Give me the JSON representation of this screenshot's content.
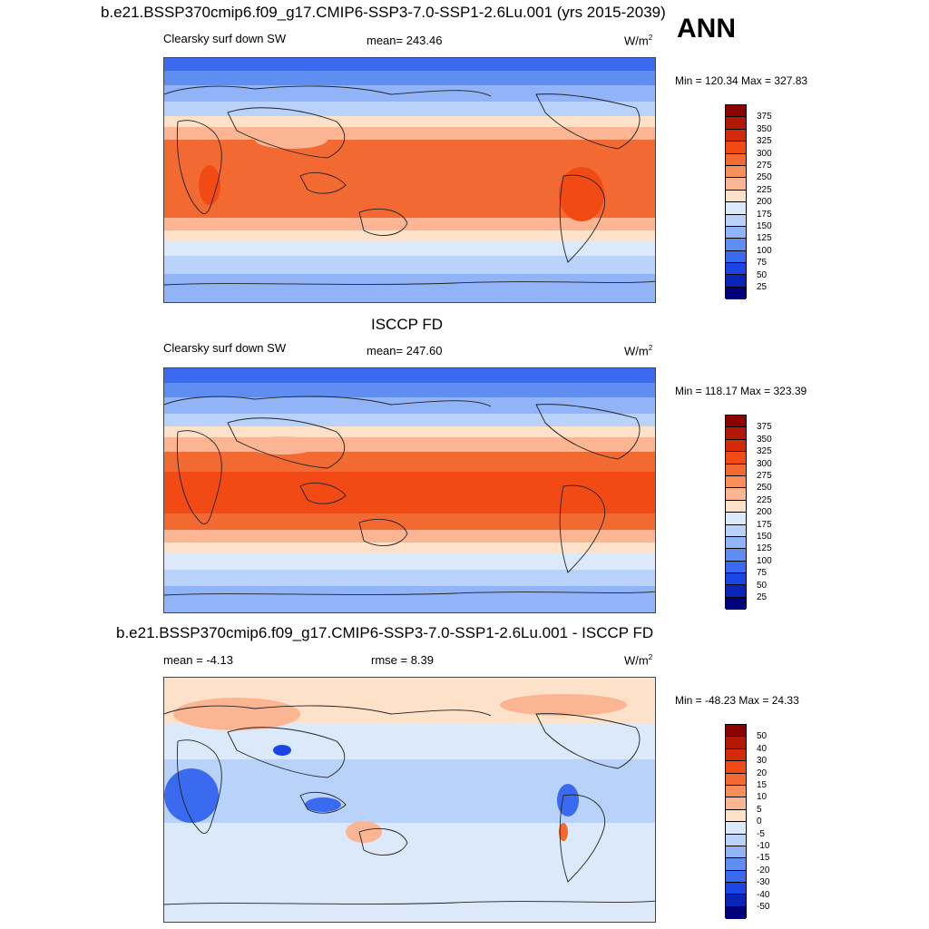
{
  "top_title": "b.e21.BSSP370cmip6.f09_g17.CMIP6-SSP3-7.0-SSP1-2.6Lu.001 (yrs 2015-2039)",
  "season": "ANN",
  "panel1": {
    "variable": "Clearsky surf down SW",
    "mean": "mean= 243.46",
    "units": "W/m",
    "units_sup": "2",
    "minmax": "Min = 120.34 Max = 327.83",
    "colorbar_ticks": [
      "375",
      "350",
      "325",
      "300",
      "275",
      "250",
      "225",
      "200",
      "175",
      "150",
      "125",
      "100",
      "75",
      "50",
      "25"
    ],
    "colorbar_colors": [
      "#8b0000",
      "#b31806",
      "#d42a0a",
      "#f24a14",
      "#f26a32",
      "#f88e5a",
      "#fbb592",
      "#fde1c9",
      "#dbe9fb",
      "#b8d2fa",
      "#90b4f7",
      "#5f8ef2",
      "#3a6af0",
      "#1b45e6",
      "#0a24b8",
      "#00007d"
    ]
  },
  "panel2": {
    "title": "ISCCP FD",
    "variable": "Clearsky surf down SW",
    "mean": "mean= 247.60",
    "units": "W/m",
    "units_sup": "2",
    "minmax": "Min = 118.17 Max = 323.39",
    "colorbar_ticks": [
      "375",
      "350",
      "325",
      "300",
      "275",
      "250",
      "225",
      "200",
      "175",
      "150",
      "125",
      "100",
      "75",
      "50",
      "25"
    ],
    "colorbar_colors": [
      "#8b0000",
      "#b31806",
      "#d42a0a",
      "#f24a14",
      "#f26a32",
      "#f88e5a",
      "#fbb592",
      "#fde1c9",
      "#dbe9fb",
      "#b8d2fa",
      "#90b4f7",
      "#5f8ef2",
      "#3a6af0",
      "#1b45e6",
      "#0a24b8",
      "#00007d"
    ]
  },
  "panel3": {
    "title": "b.e21.BSSP370cmip6.f09_g17.CMIP6-SSP3-7.0-SSP1-2.6Lu.001 - ISCCP FD",
    "mean": "mean =  -4.13",
    "rmse": "rmse =   8.39",
    "units": "W/m",
    "units_sup": "2",
    "minmax": "Min = -48.23 Max =  24.33",
    "colorbar_ticks": [
      "50",
      "40",
      "30",
      "20",
      "15",
      "10",
      "5",
      "0",
      "-5",
      "-10",
      "-15",
      "-20",
      "-30",
      "-40",
      "-50"
    ],
    "colorbar_colors": [
      "#8b0000",
      "#b31806",
      "#d42a0a",
      "#f24a14",
      "#f26a32",
      "#f88e5a",
      "#fbb592",
      "#fde1c9",
      "#dbe9fb",
      "#b8d2fa",
      "#90b4f7",
      "#5f8ef2",
      "#3a6af0",
      "#1b45e6",
      "#0a24b8",
      "#00007d"
    ]
  }
}
